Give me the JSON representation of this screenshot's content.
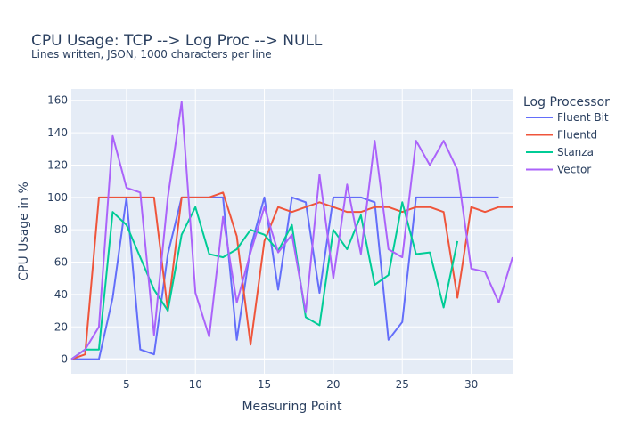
{
  "chart_data": {
    "type": "line",
    "title": "CPU Usage: TCP --> Log Proc --> NULL",
    "subtitle": "Lines written, JSON, 1000 characters per line",
    "xlabel": "Measuring Point",
    "ylabel": "CPU Usage in %",
    "xlim": [
      1,
      33
    ],
    "ylim": [
      -9,
      167
    ],
    "xticks": [
      5,
      10,
      15,
      20,
      25,
      30
    ],
    "yticks": [
      0,
      20,
      40,
      60,
      80,
      100,
      120,
      140,
      160
    ],
    "grid": true,
    "legend_title": "Log Processor",
    "legend_position": "right",
    "x": [
      1,
      2,
      3,
      4,
      5,
      6,
      7,
      8,
      9,
      10,
      11,
      12,
      13,
      14,
      15,
      16,
      17,
      18,
      19,
      20,
      21,
      22,
      23,
      24,
      25,
      26,
      27,
      28,
      29,
      30,
      31,
      32,
      33
    ],
    "series": [
      {
        "name": "Fluent Bit",
        "color": "#636efa",
        "values": [
          0,
          0,
          0,
          38,
          100,
          6,
          3,
          65,
          100,
          100,
          100,
          100,
          12,
          69,
          100,
          43,
          100,
          97,
          41,
          100,
          100,
          100,
          97,
          12,
          23,
          100,
          100,
          100,
          100,
          100,
          100,
          100,
          null
        ]
      },
      {
        "name": "Fluentd",
        "color": "#EF553B",
        "values": [
          0,
          3,
          100,
          100,
          100,
          100,
          100,
          30,
          100,
          100,
          100,
          103,
          76,
          9,
          73,
          94,
          91,
          94,
          97,
          94,
          91,
          91,
          94,
          94,
          91,
          94,
          94,
          91,
          38,
          94,
          91,
          94,
          94
        ]
      },
      {
        "name": "Stanza",
        "color": "#00cc96",
        "values": [
          0,
          6,
          6,
          91,
          83,
          63,
          43,
          30,
          77,
          94,
          65,
          63,
          68,
          80,
          77,
          67,
          83,
          26,
          21,
          80,
          68,
          89,
          46,
          52,
          97,
          65,
          66,
          32,
          73,
          null,
          null,
          null,
          null
        ]
      },
      {
        "name": "Vector",
        "color": "#ab63fa",
        "values": [
          0,
          6,
          20,
          138,
          106,
          103,
          15,
          100,
          159,
          41,
          14,
          88,
          35,
          66,
          94,
          66,
          77,
          29,
          114,
          50,
          108,
          65,
          135,
          68,
          63,
          135,
          120,
          135,
          117,
          56,
          54,
          35,
          63
        ]
      }
    ]
  }
}
